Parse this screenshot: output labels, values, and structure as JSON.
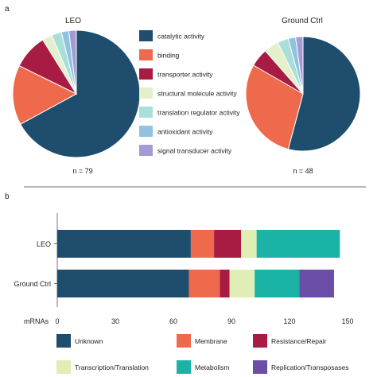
{
  "colors": {
    "catalytic": "#1e4d6e",
    "binding": "#ef6a4c",
    "transporter": "#a81c44",
    "structural": "#e4efcc",
    "translation_reg": "#a9dfd8",
    "antioxidant": "#8fc3df",
    "signal": "#a49bd6",
    "unknown": "#1e4d6e",
    "membrane": "#ef6a4c",
    "resistance": "#a81c44",
    "transcription": "#dfeeb4",
    "metabolism": "#1bb3a6",
    "replication": "#6a4ea8"
  },
  "panels": {
    "a_label": "a",
    "b_label": "b"
  },
  "chart_data": [
    {
      "type": "pie",
      "title": "LEO",
      "note": "n = 79",
      "labels": [
        "catalytic activity",
        "binding",
        "transporter activity",
        "structural molecule activity",
        "translation regulator activity",
        "antioxidant activity",
        "signal transducer activity"
      ],
      "values": [
        53,
        12,
        7,
        2,
        2,
        1.5,
        1.5
      ]
    },
    {
      "type": "pie",
      "title": "Ground Ctrl",
      "note": "n = 48",
      "labels": [
        "catalytic activity",
        "binding",
        "transporter activity",
        "structural molecule activity",
        "translation regulator activity",
        "antioxidant activity",
        "signal transducer activity"
      ],
      "values": [
        26,
        14,
        2.5,
        2,
        1.5,
        1,
        1
      ]
    },
    {
      "type": "bar",
      "orientation": "horizontal",
      "stacked": true,
      "categories": [
        "LEO",
        "Ground Ctrl"
      ],
      "series": [
        {
          "name": "Unknown",
          "values": [
            69,
            68
          ]
        },
        {
          "name": "Membrane",
          "values": [
            12,
            16
          ]
        },
        {
          "name": "Resistance/Repair",
          "values": [
            14,
            5
          ]
        },
        {
          "name": "Transcription/Translation",
          "values": [
            8,
            13
          ]
        },
        {
          "name": "Metabolism",
          "values": [
            43,
            23
          ]
        },
        {
          "name": "Replication/Transposases",
          "values": [
            0,
            18
          ]
        }
      ],
      "xlabel": "mRNAs",
      "xlim": [
        0,
        150
      ],
      "xticks": [
        0,
        30,
        60,
        90,
        120,
        150
      ],
      "legend": "bottom"
    }
  ]
}
